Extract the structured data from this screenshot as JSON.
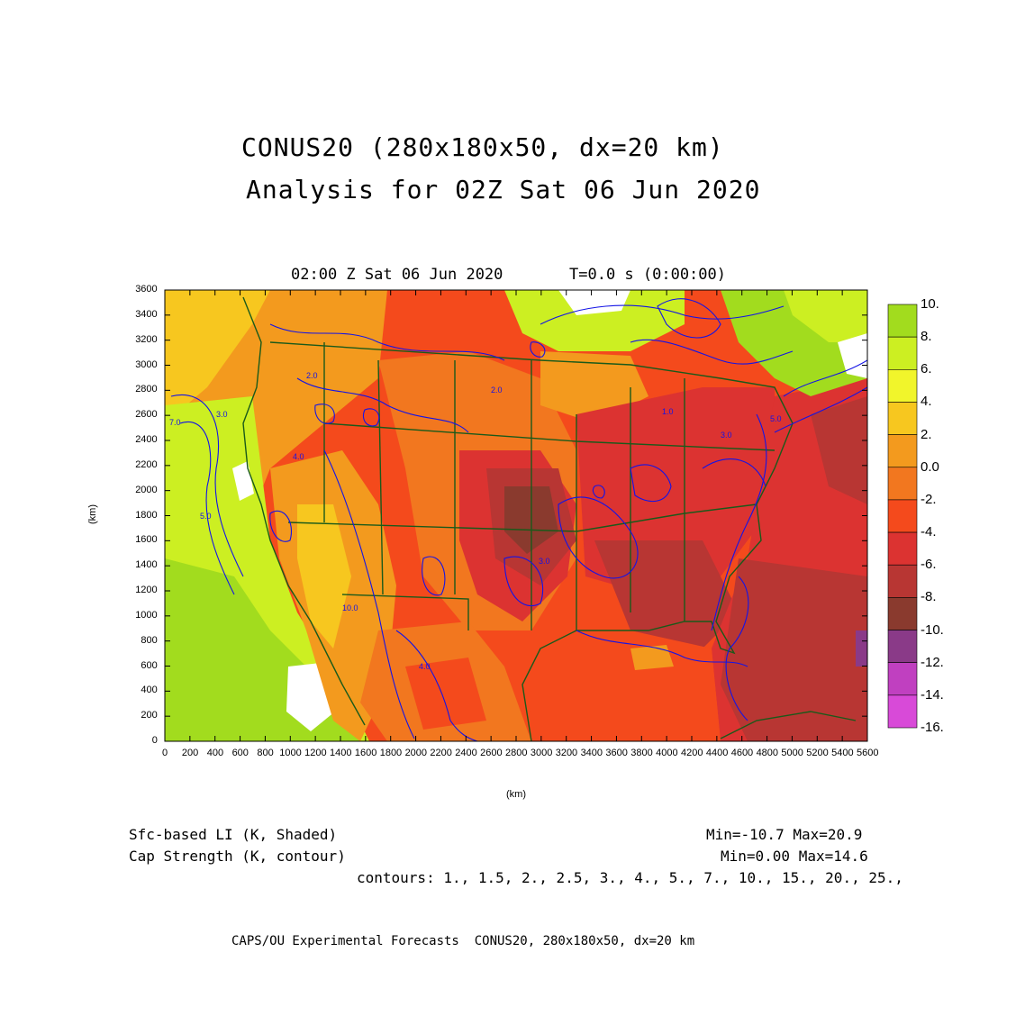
{
  "title_line1": "CONUS20 (280x180x50, dx=20 km)",
  "title_line2": "Analysis for 02Z Sat 06 Jun 2020",
  "plot_time": "02:00 Z Sat 06 Jun 2020",
  "plot_T": "T=0.0 s (0:00:00)",
  "axes": {
    "x_label": "(km)",
    "y_label": "(km)",
    "x_ticks": [
      "0",
      "200",
      "400",
      "600",
      "800",
      "1000",
      "1200",
      "1400",
      "1600",
      "1800",
      "2000",
      "2200",
      "2400",
      "2600",
      "2800",
      "3000",
      "3200",
      "3400",
      "3600",
      "3800",
      "4000",
      "4200",
      "4400",
      "4600",
      "4800",
      "5000",
      "5200",
      "5400",
      "5600"
    ],
    "y_ticks": [
      "0",
      "200",
      "400",
      "600",
      "800",
      "1000",
      "1200",
      "1400",
      "1600",
      "1800",
      "2000",
      "2200",
      "2400",
      "2600",
      "2800",
      "3000",
      "3200",
      "3400",
      "3600"
    ]
  },
  "colorbar": {
    "labels": [
      "10.",
      "8.",
      "6.",
      "4.",
      "2.",
      "0.0",
      "-2.",
      "-4.",
      "-6.",
      "-8.",
      "-10.",
      "-12.",
      "-14.",
      "-16."
    ],
    "colors": [
      "#a2dc1e",
      "#ccef22",
      "#f1f52b",
      "#f7c71f",
      "#f39a1e",
      "#f2771f",
      "#f44a1c",
      "#dc3331",
      "#b83633",
      "#8a3a2e",
      "#8a3a88",
      "#c040c0",
      "#d84ad8"
    ]
  },
  "shaded_field": {
    "name": "Sfc-based LI (K, Shaded)",
    "stats": "Min=-10.7 Max=20.9"
  },
  "contour_field": {
    "name": "Cap Strength (K, contour)",
    "stats": "Min=0.00 Max=14.6",
    "contours_text": "contours: 1., 1.5, 2., 2.5, 3., 4., 5., 7., 10., 15., 20., 25.,"
  },
  "map_contour_labels": [
    "2.0",
    "3.0",
    "4.0",
    "5.0",
    "7.0",
    "10.0",
    "4.0",
    "3.0",
    "2.0",
    "1.0",
    "5.0",
    "3.0"
  ],
  "footer": "CAPS/OU Experimental Forecasts  CONUS20, 280x180x50, dx=20 km"
}
